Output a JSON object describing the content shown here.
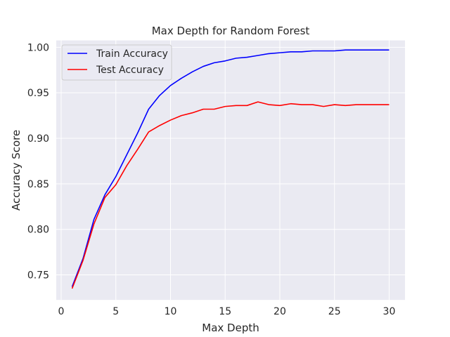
{
  "chart_data": {
    "type": "line",
    "title": "Max Depth for Random Forest",
    "xlabel": "Max Depth",
    "ylabel": "Accuracy Score",
    "x": [
      1,
      2,
      3,
      4,
      5,
      6,
      7,
      8,
      9,
      10,
      11,
      12,
      13,
      14,
      15,
      16,
      17,
      18,
      19,
      20,
      21,
      22,
      23,
      24,
      25,
      26,
      27,
      28,
      29,
      30
    ],
    "xlim": [
      -0.45,
      31.45
    ],
    "ylim": [
      0.7225,
      1.0075
    ],
    "xticks": [
      0,
      5,
      10,
      15,
      20,
      25,
      30
    ],
    "yticks": [
      0.75,
      0.8,
      0.85,
      0.9,
      0.95,
      1.0
    ],
    "xtick_labels": [
      "0",
      "5",
      "10",
      "15",
      "20",
      "25",
      "30"
    ],
    "ytick_labels": [
      "0.75",
      "0.80",
      "0.85",
      "0.90",
      "0.95",
      "1.00"
    ],
    "grid": true,
    "legend_position": "top-left",
    "series": [
      {
        "name": "Train Accuracy",
        "color": "#0000ff",
        "values": [
          0.737,
          0.768,
          0.811,
          0.838,
          0.858,
          0.882,
          0.906,
          0.932,
          0.947,
          0.958,
          0.966,
          0.973,
          0.979,
          0.983,
          0.985,
          0.988,
          0.989,
          0.991,
          0.993,
          0.994,
          0.995,
          0.995,
          0.996,
          0.996,
          0.996,
          0.997,
          0.997,
          0.997,
          0.997,
          0.997
        ]
      },
      {
        "name": "Test Accuracy",
        "color": "#ff0000",
        "values": [
          0.735,
          0.766,
          0.806,
          0.835,
          0.849,
          0.87,
          0.888,
          0.907,
          0.914,
          0.92,
          0.925,
          0.928,
          0.932,
          0.932,
          0.935,
          0.936,
          0.936,
          0.94,
          0.937,
          0.936,
          0.938,
          0.937,
          0.937,
          0.935,
          0.937,
          0.936,
          0.937,
          0.937,
          0.937,
          0.937
        ]
      }
    ]
  },
  "colors": {
    "plot_background": "#eaeaf2",
    "grid": "#ffffff",
    "text": "#262626"
  }
}
